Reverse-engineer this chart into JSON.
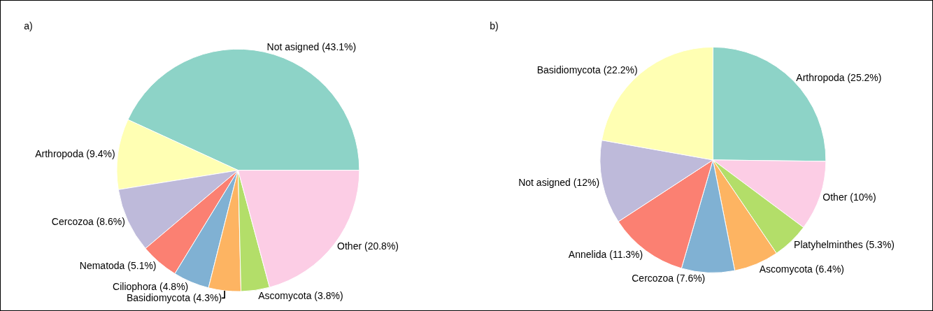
{
  "chart_data": [
    {
      "type": "pie",
      "title": "a)",
      "categories": [
        "Not asigned",
        "Arthropoda",
        "Cercozoa",
        "Nematoda",
        "Ciliophora",
        "Basidiomycota",
        "Ascomycota",
        "Other"
      ],
      "values": [
        43.1,
        9.4,
        8.6,
        5.1,
        4.8,
        4.3,
        3.8,
        20.8
      ],
      "value_labels": [
        "(43.1%)",
        "(9.4%)",
        "(8.6%)",
        "(5.1%)",
        "(4.8%)",
        "(4.3%)",
        "(3.8%)",
        "(20.8%)"
      ],
      "colors": [
        "#8dd3c7",
        "#ffffb3",
        "#bebada",
        "#fb8072",
        "#80b1d3",
        "#fdb462",
        "#b3de69",
        "#fccde5"
      ],
      "legend": false
    },
    {
      "type": "pie",
      "title": "b)",
      "categories": [
        "Arthropoda",
        "Other",
        "Platyhelminthes",
        "Ascomycota",
        "Cercozoa",
        "Annelida",
        "Not asigned",
        "Basidiomycota"
      ],
      "values": [
        25.2,
        10,
        5.3,
        6.4,
        7.6,
        11.3,
        12,
        22.2
      ],
      "value_labels": [
        "(25.2%)",
        "(10%)",
        "(5.3%)",
        "(6.4%)",
        "(7.6%)",
        "(11.3%)",
        "(12%)",
        "(22.2%)"
      ],
      "colors": [
        "#8dd3c7",
        "#fccde5",
        "#b3de69",
        "#fdb462",
        "#80b1d3",
        "#fb8072",
        "#bebada",
        "#ffffb3"
      ],
      "legend": false
    }
  ]
}
